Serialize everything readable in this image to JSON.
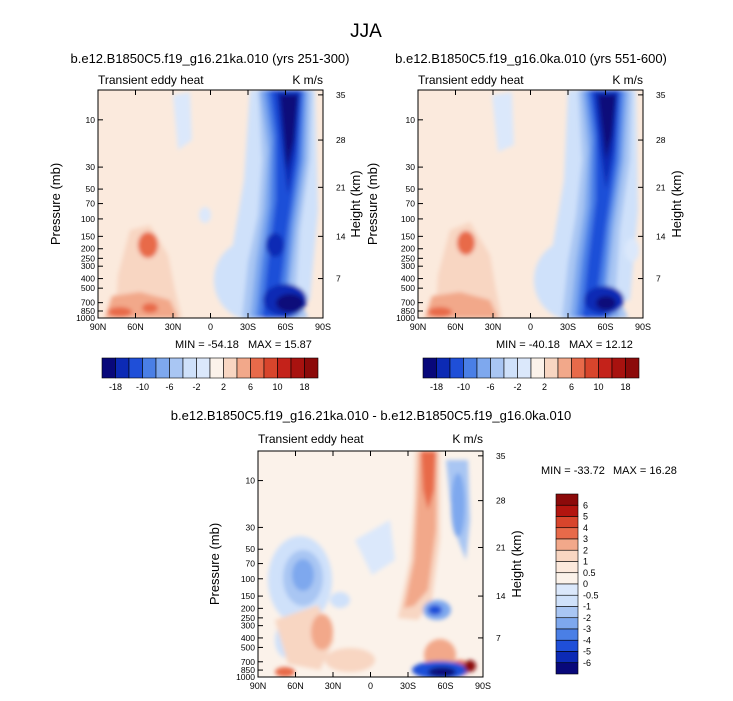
{
  "figure_title": "JJA",
  "colors": {
    "deep_blue": "#08087a",
    "mid_blue": "#1f4fd8",
    "light_blue": "#7ea8ee",
    "pale_blue": "#cfe1fa",
    "near_white": "#fbf2ea",
    "pale_red": "#f8d6c2",
    "mid_red": "#e86a4a",
    "dark_red": "#8c0a0a"
  },
  "chart_data": [
    {
      "type": "heatmap",
      "id": "panel1",
      "title": "b.e12.B1850C5.f19_g16.21ka.010 (yrs 251-300)",
      "left_string": "Transient eddy heat",
      "right_string": "K m/s",
      "ylabel": "Pressure (mb)",
      "y2label": "Height (km)",
      "xticks": [
        "90N",
        "60N",
        "30N",
        "0",
        "30S",
        "60S",
        "90S"
      ],
      "xlim": [
        90,
        -90
      ],
      "pressure_ticks": [
        10,
        30,
        50,
        70,
        100,
        150,
        200,
        250,
        300,
        400,
        500,
        700,
        850,
        1000
      ],
      "pressure_tick_labels": [
        "10",
        "30",
        "50",
        "70",
        "100",
        "150",
        "200",
        "250",
        "300",
        "400",
        "500",
        "700",
        "850",
        "1000"
      ],
      "ylim": [
        1000,
        5
      ],
      "height_ticks": [
        7,
        14,
        21,
        28,
        35
      ],
      "height_tick_labels": [
        "7",
        "14",
        "21",
        "28",
        "35"
      ],
      "min_label": "MIN = -54.18",
      "max_label": "MAX = 15.87",
      "min": -54.18,
      "max": 15.87,
      "colorbar_levels": [
        "-18",
        "-10",
        "-6",
        "-2",
        "2",
        "6",
        "10",
        "18"
      ]
    },
    {
      "type": "heatmap",
      "id": "panel2",
      "title": "b.e12.B1850C5.f19_g16.0ka.010 (yrs 551-600)",
      "left_string": "Transient eddy heat",
      "right_string": "K m/s",
      "ylabel": "Pressure (mb)",
      "y2label": "Height (km)",
      "xticks": [
        "90N",
        "60N",
        "30N",
        "0",
        "30S",
        "60S",
        "90S"
      ],
      "xlim": [
        90,
        -90
      ],
      "pressure_ticks": [
        10,
        30,
        50,
        70,
        100,
        150,
        200,
        250,
        300,
        400,
        500,
        700,
        850,
        1000
      ],
      "pressure_tick_labels": [
        "10",
        "30",
        "50",
        "70",
        "100",
        "150",
        "200",
        "250",
        "300",
        "400",
        "500",
        "700",
        "850",
        "1000"
      ],
      "ylim": [
        1000,
        5
      ],
      "height_ticks": [
        7,
        14,
        21,
        28,
        35
      ],
      "height_tick_labels": [
        "7",
        "14",
        "21",
        "28",
        "35"
      ],
      "min_label": "MIN = -40.18",
      "max_label": "MAX = 12.12",
      "min": -40.18,
      "max": 12.12,
      "colorbar_levels": [
        "-18",
        "-10",
        "-6",
        "-2",
        "2",
        "6",
        "10",
        "18"
      ]
    },
    {
      "type": "heatmap",
      "id": "panel3",
      "title": "b.e12.B1850C5.f19_g16.21ka.010 - b.e12.B1850C5.f19_g16.0ka.010",
      "left_string": "Transient eddy heat",
      "right_string": "K m/s",
      "ylabel": "Pressure (mb)",
      "y2label": "Height (km)",
      "xticks": [
        "90N",
        "60N",
        "30N",
        "0",
        "30S",
        "60S",
        "90S"
      ],
      "xlim": [
        90,
        -90
      ],
      "pressure_ticks": [
        10,
        30,
        50,
        70,
        100,
        150,
        200,
        250,
        300,
        400,
        500,
        700,
        850,
        1000
      ],
      "pressure_tick_labels": [
        "10",
        "30",
        "50",
        "70",
        "100",
        "150",
        "200",
        "250",
        "300",
        "400",
        "500",
        "700",
        "850",
        "1000"
      ],
      "ylim": [
        1000,
        5
      ],
      "height_ticks": [
        7,
        14,
        21,
        28,
        35
      ],
      "height_tick_labels": [
        "7",
        "14",
        "21",
        "28",
        "35"
      ],
      "min_label": "MIN = -33.72",
      "max_label": "MAX = 16.28",
      "min": -33.72,
      "max": 16.28,
      "colorbar_levels": [
        "6",
        "5",
        "4",
        "3",
        "2",
        "1",
        "0.5",
        "0",
        "-0.5",
        "-1",
        "-2",
        "-3",
        "-4",
        "-5",
        "-6"
      ]
    }
  ]
}
